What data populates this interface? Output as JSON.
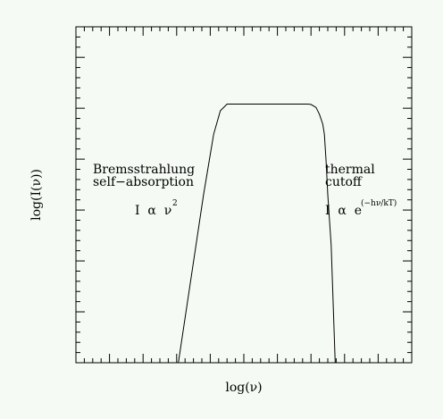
{
  "chart_data": {
    "type": "line",
    "title": "",
    "xlabel": "log(ν)",
    "ylabel": "log(I(ν))",
    "xlim": [
      0,
      1
    ],
    "ylim": [
      0,
      1
    ],
    "grid": false,
    "legend": "none",
    "series": [
      {
        "x": [
          0.305,
          0.38,
          0.41,
          0.43,
          0.45,
          0.69,
          0.7,
          0.715,
          0.725,
          0.735,
          0.74,
          0.745,
          0.75,
          0.76,
          0.772
        ],
        "y": [
          0.0,
          0.5,
          0.68,
          0.75,
          0.77,
          0.77,
          0.769,
          0.76,
          0.74,
          0.71,
          0.68,
          0.6,
          0.5,
          0.35,
          0.0
        ]
      }
    ],
    "annotations": {
      "left_line1": "Bremsstrahlung",
      "left_line2": "self−absorption",
      "left_formula": "I  α  ν",
      "left_formula_sup": "2",
      "right_line1": "thermal",
      "right_line2": "cutoff",
      "right_formula": "I  α  e",
      "right_formula_sup": "(−hν/kT)"
    }
  }
}
